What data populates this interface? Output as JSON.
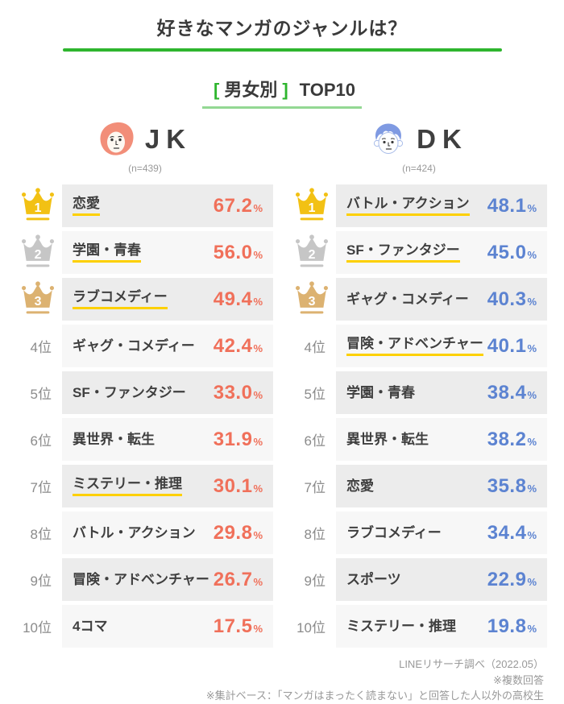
{
  "title": "好きなマンガのジャンルは？",
  "subtitle": {
    "open_bracket": "[",
    "category": "男女別",
    "close_bracket": "]",
    "suffix": "TOP10"
  },
  "unit": "%",
  "columns": [
    {
      "id": "jk",
      "label": "JK",
      "sample_size": "(n=439)",
      "icon": "girl-face-icon",
      "accent_color": "#f0705a",
      "rows": [
        {
          "rank_label": "1",
          "crown": "gold",
          "genre": "恋愛",
          "value": "67.2",
          "highlight": true
        },
        {
          "rank_label": "2",
          "crown": "silver",
          "genre": "学園・青春",
          "value": "56.0",
          "highlight": true
        },
        {
          "rank_label": "3",
          "crown": "bronze",
          "genre": "ラブコメディー",
          "value": "49.4",
          "highlight": true
        },
        {
          "rank_label": "4位",
          "crown": null,
          "genre": "ギャグ・コメディー",
          "value": "42.4",
          "highlight": false
        },
        {
          "rank_label": "5位",
          "crown": null,
          "genre": "SF・ファンタジー",
          "value": "33.0",
          "highlight": false
        },
        {
          "rank_label": "6位",
          "crown": null,
          "genre": "異世界・転生",
          "value": "31.9",
          "highlight": false
        },
        {
          "rank_label": "7位",
          "crown": null,
          "genre": "ミステリー・推理",
          "value": "30.1",
          "highlight": true
        },
        {
          "rank_label": "8位",
          "crown": null,
          "genre": "バトル・アクション",
          "value": "29.8",
          "highlight": false
        },
        {
          "rank_label": "9位",
          "crown": null,
          "genre": "冒険・アドベンチャー",
          "value": "26.7",
          "highlight": false
        },
        {
          "rank_label": "10位",
          "crown": null,
          "genre": "4コマ",
          "value": "17.5",
          "highlight": false
        }
      ]
    },
    {
      "id": "dk",
      "label": "DK",
      "sample_size": "(n=424)",
      "icon": "boy-face-icon",
      "accent_color": "#5c83d1",
      "rows": [
        {
          "rank_label": "1",
          "crown": "gold",
          "genre": "バトル・アクション",
          "value": "48.1",
          "highlight": true
        },
        {
          "rank_label": "2",
          "crown": "silver",
          "genre": "SF・ファンタジー",
          "value": "45.0",
          "highlight": true
        },
        {
          "rank_label": "3",
          "crown": "bronze",
          "genre": "ギャグ・コメディー",
          "value": "40.3",
          "highlight": false
        },
        {
          "rank_label": "4位",
          "crown": null,
          "genre": "冒険・アドベンチャー",
          "value": "40.1",
          "highlight": true
        },
        {
          "rank_label": "5位",
          "crown": null,
          "genre": "学園・青春",
          "value": "38.4",
          "highlight": false
        },
        {
          "rank_label": "6位",
          "crown": null,
          "genre": "異世界・転生",
          "value": "38.2",
          "highlight": false
        },
        {
          "rank_label": "7位",
          "crown": null,
          "genre": "恋愛",
          "value": "35.8",
          "highlight": false
        },
        {
          "rank_label": "8位",
          "crown": null,
          "genre": "ラブコメディー",
          "value": "34.4",
          "highlight": false
        },
        {
          "rank_label": "9位",
          "crown": null,
          "genre": "スポーツ",
          "value": "22.9",
          "highlight": false
        },
        {
          "rank_label": "10位",
          "crown": null,
          "genre": "ミステリー・推理",
          "value": "19.8",
          "highlight": false
        }
      ]
    }
  ],
  "footer": {
    "lines": [
      "LINEリサーチ調べ（2022.05）",
      "※複数回答",
      "※集計ベース：「マンガはまったく読まない」と回答した人以外の高校生"
    ]
  },
  "colors": {
    "green_line": "#2eb52e",
    "light_green_underline": "#93d893",
    "jk_accent": "#f0705a",
    "dk_accent": "#5c83d1",
    "highlight_yellow": "#fdd000",
    "crown_gold": "#f2c114",
    "crown_silver": "#c6c6c6",
    "crown_bronze": "#dcb271",
    "row_bg_odd": "#ececec",
    "row_bg_even": "#f7f7f7",
    "girl_icon": "#f28e79",
    "boy_icon": "#7f9ae2"
  },
  "chart_data": {
    "type": "table",
    "title": "好きなマンガのジャンルは？",
    "subtitle": "[男女別] TOP10",
    "unit": "%",
    "series": [
      {
        "name": "JK",
        "sample_size": 439,
        "ranking": [
          {
            "rank": 1,
            "genre": "恋愛",
            "value": 67.2,
            "highlighted": true
          },
          {
            "rank": 2,
            "genre": "学園・青春",
            "value": 56.0,
            "highlighted": true
          },
          {
            "rank": 3,
            "genre": "ラブコメディー",
            "value": 49.4,
            "highlighted": true
          },
          {
            "rank": 4,
            "genre": "ギャグ・コメディー",
            "value": 42.4,
            "highlighted": false
          },
          {
            "rank": 5,
            "genre": "SF・ファンタジー",
            "value": 33.0,
            "highlighted": false
          },
          {
            "rank": 6,
            "genre": "異世界・転生",
            "value": 31.9,
            "highlighted": false
          },
          {
            "rank": 7,
            "genre": "ミステリー・推理",
            "value": 30.1,
            "highlighted": true
          },
          {
            "rank": 8,
            "genre": "バトル・アクション",
            "value": 29.8,
            "highlighted": false
          },
          {
            "rank": 9,
            "genre": "冒険・アドベンチャー",
            "value": 26.7,
            "highlighted": false
          },
          {
            "rank": 10,
            "genre": "4コマ",
            "value": 17.5,
            "highlighted": false
          }
        ]
      },
      {
        "name": "DK",
        "sample_size": 424,
        "ranking": [
          {
            "rank": 1,
            "genre": "バトル・アクション",
            "value": 48.1,
            "highlighted": true
          },
          {
            "rank": 2,
            "genre": "SF・ファンタジー",
            "value": 45.0,
            "highlighted": true
          },
          {
            "rank": 3,
            "genre": "ギャグ・コメディー",
            "value": 40.3,
            "highlighted": false
          },
          {
            "rank": 4,
            "genre": "冒険・アドベンチャー",
            "value": 40.1,
            "highlighted": true
          },
          {
            "rank": 5,
            "genre": "学園・青春",
            "value": 38.4,
            "highlighted": false
          },
          {
            "rank": 6,
            "genre": "異世界・転生",
            "value": 38.2,
            "highlighted": false
          },
          {
            "rank": 7,
            "genre": "恋愛",
            "value": 35.8,
            "highlighted": false
          },
          {
            "rank": 8,
            "genre": "ラブコメディー",
            "value": 34.4,
            "highlighted": false
          },
          {
            "rank": 9,
            "genre": "スポーツ",
            "value": 22.9,
            "highlighted": false
          },
          {
            "rank": 10,
            "genre": "ミステリー・推理",
            "value": 19.8,
            "highlighted": false
          }
        ]
      }
    ],
    "source": "LINEリサーチ調べ（2022.05）",
    "notes": [
      "※複数回答",
      "※集計ベース：「マンガはまったく読まない」と回答した人以外の高校生"
    ]
  }
}
